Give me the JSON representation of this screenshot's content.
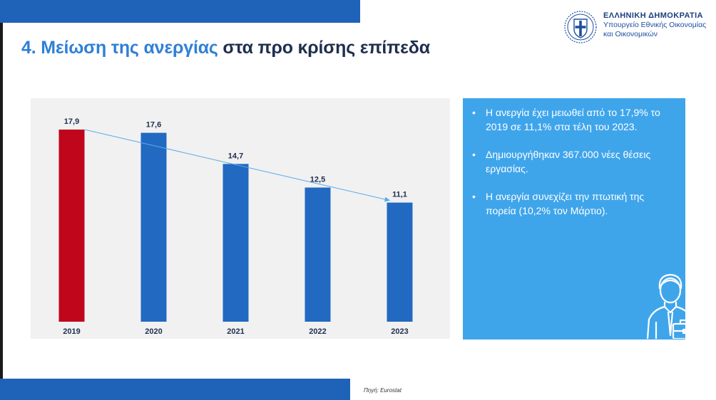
{
  "slide": {
    "title_part1": "4. Μείωση της ανεργίας",
    "title_part2": "στα προ κρίσης επίπεδα",
    "source": "Πηγή: Eurostat"
  },
  "logo": {
    "line1": "ΕΛΛΗΝΙΚΗ ΔΗΜΟΚΡΑΤΙΑ",
    "line2": "Υπουργείο Εθνικής Οικονομίας",
    "line3": "και Οικονομικών"
  },
  "info": {
    "bullets": [
      "Η ανεργία έχει μειωθεί από το 17,9% το 2019 σε 11,1% στα τέλη του 2023.",
      "Δημιουργήθηκαν 367.000 νέες θέσεις εργασίας.",
      "Η ανεργία συνεχίζει την πτωτική της πορεία (10,2% τον Μάρτιο)."
    ]
  },
  "colors": {
    "highlight_bar": "#c0061a",
    "bar": "#2269c2",
    "trend_line": "#59a9e8"
  },
  "chart_data": {
    "type": "bar",
    "title": "",
    "xlabel": "",
    "ylabel": "",
    "categories": [
      "2019",
      "2020",
      "2021",
      "2022",
      "2023"
    ],
    "values": [
      17.9,
      17.6,
      14.7,
      12.5,
      11.1
    ],
    "value_labels": [
      "17,9",
      "17,6",
      "14,7",
      "12,5",
      "11,1"
    ],
    "highlight_index": 0,
    "ylim": [
      0,
      20
    ],
    "grid": false,
    "legend": "none",
    "trend_arrow": {
      "from": "2019",
      "to": "2023"
    }
  }
}
